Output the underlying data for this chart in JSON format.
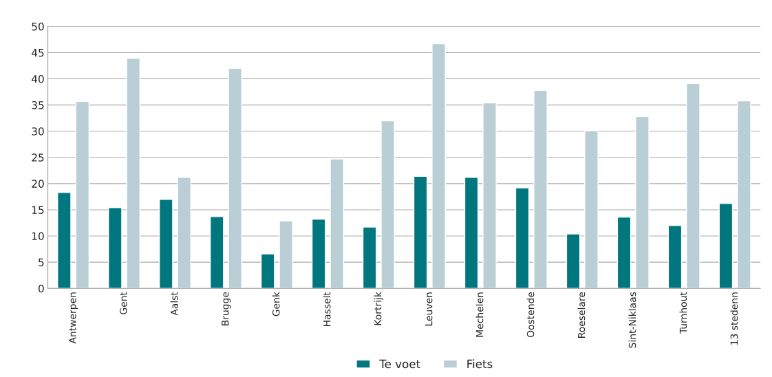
{
  "chart_data": {
    "type": "bar",
    "categories": [
      "Antwerpen",
      "Gent",
      "Aalst",
      "Brugge",
      "Genk",
      "Hasselt",
      "Kortrijk",
      "Leuven",
      "Mechelen",
      "Oostende",
      "Roeselare",
      "Sint-Niklaas",
      "Turnhout",
      "13 stedenn"
    ],
    "series": [
      {
        "name": "Te voet",
        "color": "#00767f",
        "values": [
          18.3,
          15.4,
          17.0,
          13.7,
          6.6,
          13.2,
          11.7,
          21.4,
          21.2,
          19.2,
          10.4,
          13.6,
          12.0,
          16.2
        ]
      },
      {
        "name": "Fiets",
        "color": "#b9cfd5",
        "values": [
          35.7,
          43.9,
          21.2,
          42.0,
          12.9,
          24.7,
          32.0,
          46.7,
          35.4,
          37.8,
          30.1,
          32.8,
          39.1,
          35.8
        ]
      }
    ],
    "ylim": [
      0,
      50
    ],
    "yticks": [
      0,
      5,
      10,
      15,
      20,
      25,
      30,
      35,
      40,
      45,
      50
    ],
    "grid": "y",
    "legend": "bottom"
  }
}
